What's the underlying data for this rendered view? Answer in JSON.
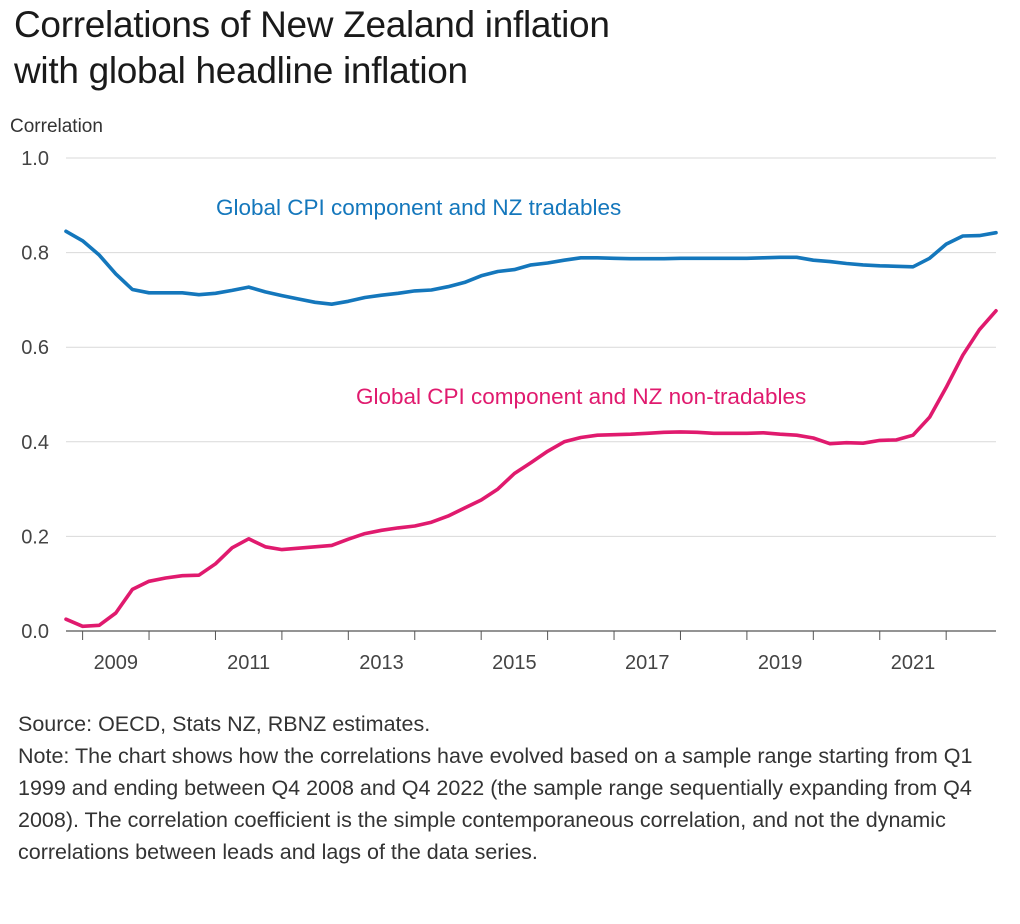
{
  "title_line1": "Correlations of New Zealand inflation",
  "title_line2": "with global headline inflation",
  "source": "Source: OECD, Stats NZ, RBNZ estimates.",
  "note": "Note: The chart shows how the correlations have evolved based on a sample range starting from Q1 1999 and ending between Q4 2008 and Q4 2022 (the sample range sequentially expanding from Q4 2008). The correlation coefficient is the simple contemporaneous correlation, and not the dynamic correlations between leads and lags of the data series.",
  "colors": {
    "tradables": "#1477bc",
    "nontradables": "#e01a6e",
    "grid": "#d9d9d9",
    "axis": "#555555"
  },
  "chart_data": {
    "type": "line",
    "xlabel": "",
    "ylabel": "Correlation",
    "ylim": [
      0,
      1.0
    ],
    "xlim": [
      2008.75,
      2022.75
    ],
    "yticks": [
      "0.0",
      "0.2",
      "0.4",
      "0.6",
      "0.8",
      "1.0"
    ],
    "xticks": [
      "2009",
      "2011",
      "2013",
      "2015",
      "2017",
      "2019",
      "2021"
    ],
    "grid": true,
    "series": [
      {
        "name": "Global CPI component and NZ tradables",
        "color": "#1477bc",
        "x": [
          "2008Q4",
          "2009Q1",
          "2009Q2",
          "2009Q3",
          "2009Q4",
          "2010Q1",
          "2010Q2",
          "2010Q3",
          "2010Q4",
          "2011Q1",
          "2011Q2",
          "2011Q3",
          "2011Q4",
          "2012Q1",
          "2012Q2",
          "2012Q3",
          "2012Q4",
          "2013Q1",
          "2013Q2",
          "2013Q3",
          "2013Q4",
          "2014Q1",
          "2014Q2",
          "2014Q3",
          "2014Q4",
          "2015Q1",
          "2015Q2",
          "2015Q3",
          "2015Q4",
          "2016Q1",
          "2016Q2",
          "2016Q3",
          "2016Q4",
          "2017Q1",
          "2017Q2",
          "2017Q3",
          "2017Q4",
          "2018Q1",
          "2018Q2",
          "2018Q3",
          "2018Q4",
          "2019Q1",
          "2019Q2",
          "2019Q3",
          "2019Q4",
          "2020Q1",
          "2020Q2",
          "2020Q3",
          "2020Q4",
          "2021Q1",
          "2021Q2",
          "2021Q3",
          "2021Q4",
          "2022Q1",
          "2022Q2",
          "2022Q3",
          "2022Q4"
        ],
        "values": [
          0.845,
          0.825,
          0.795,
          0.755,
          0.722,
          0.715,
          0.715,
          0.715,
          0.711,
          0.714,
          0.72,
          0.727,
          0.717,
          0.709,
          0.702,
          0.695,
          0.691,
          0.697,
          0.705,
          0.71,
          0.714,
          0.719,
          0.721,
          0.728,
          0.737,
          0.751,
          0.76,
          0.764,
          0.774,
          0.778,
          0.784,
          0.789,
          0.789,
          0.788,
          0.787,
          0.787,
          0.787,
          0.788,
          0.788,
          0.788,
          0.788,
          0.788,
          0.789,
          0.79,
          0.79,
          0.784,
          0.781,
          0.777,
          0.774,
          0.772,
          0.771,
          0.77,
          0.788,
          0.818,
          0.835,
          0.836,
          0.842
        ]
      },
      {
        "name": "Global CPI component and NZ non-tradables",
        "color": "#e01a6e",
        "x": [
          "2008Q4",
          "2009Q1",
          "2009Q2",
          "2009Q3",
          "2009Q4",
          "2010Q1",
          "2010Q2",
          "2010Q3",
          "2010Q4",
          "2011Q1",
          "2011Q2",
          "2011Q3",
          "2011Q4",
          "2012Q1",
          "2012Q2",
          "2012Q3",
          "2012Q4",
          "2013Q1",
          "2013Q2",
          "2013Q3",
          "2013Q4",
          "2014Q1",
          "2014Q2",
          "2014Q3",
          "2014Q4",
          "2015Q1",
          "2015Q2",
          "2015Q3",
          "2015Q4",
          "2016Q1",
          "2016Q2",
          "2016Q3",
          "2016Q4",
          "2017Q1",
          "2017Q2",
          "2017Q3",
          "2017Q4",
          "2018Q1",
          "2018Q2",
          "2018Q3",
          "2018Q4",
          "2019Q1",
          "2019Q2",
          "2019Q3",
          "2019Q4",
          "2020Q1",
          "2020Q2",
          "2020Q3",
          "2020Q4",
          "2021Q1",
          "2021Q2",
          "2021Q3",
          "2021Q4",
          "2022Q1",
          "2022Q2",
          "2022Q3",
          "2022Q4"
        ],
        "values": [
          0.025,
          0.01,
          0.012,
          0.038,
          0.088,
          0.105,
          0.112,
          0.117,
          0.118,
          0.142,
          0.176,
          0.195,
          0.178,
          0.172,
          0.175,
          0.178,
          0.181,
          0.194,
          0.206,
          0.213,
          0.218,
          0.222,
          0.23,
          0.243,
          0.26,
          0.277,
          0.3,
          0.333,
          0.356,
          0.38,
          0.4,
          0.409,
          0.414,
          0.415,
          0.416,
          0.418,
          0.42,
          0.421,
          0.42,
          0.418,
          0.418,
          0.418,
          0.419,
          0.416,
          0.414,
          0.408,
          0.396,
          0.398,
          0.397,
          0.403,
          0.404,
          0.414,
          0.452,
          0.515,
          0.583,
          0.637,
          0.677
        ]
      }
    ],
    "annotations": [
      {
        "text": "Global CPI component and NZ tradables",
        "series": 0
      },
      {
        "text": "Global CPI component and NZ non-tradables",
        "series": 1
      }
    ]
  }
}
